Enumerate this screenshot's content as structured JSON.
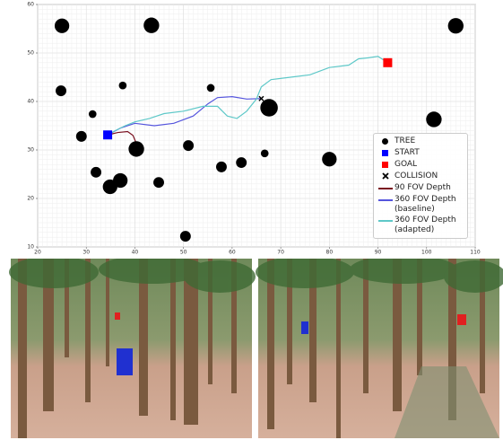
{
  "chart_data": {
    "type": "scatter",
    "xlim": [
      20,
      110
    ],
    "ylim": [
      10,
      60
    ],
    "xticks": [
      20,
      30,
      40,
      50,
      60,
      70,
      80,
      90,
      100,
      110
    ],
    "yticks": [
      10,
      20,
      30,
      40,
      50,
      60
    ],
    "grid": true,
    "legend": "lower right",
    "series": [
      {
        "name": "TREE",
        "color": "#000000",
        "marker": "circle",
        "x": [
          25,
          43.4,
          106,
          24.8,
          37.5,
          55.6,
          31.3,
          67.6,
          101.5,
          29,
          40.3,
          51,
          66.7,
          80,
          61.9,
          57.8,
          32,
          37,
          34.9,
          44.9,
          50.4
        ],
        "y": [
          55.6,
          55.7,
          55.6,
          42.2,
          43.3,
          42.8,
          37.4,
          38.7,
          36.3,
          32.8,
          30.2,
          30.9,
          29.3,
          28.1,
          27.4,
          26.5,
          25.4,
          23.7,
          22.4,
          23.3,
          12.2
        ],
        "sizes": [
          1.5,
          1.6,
          1.6,
          1.1,
          0.8,
          0.8,
          0.8,
          1.8,
          1.6,
          1.1,
          1.6,
          1.1,
          0.8,
          1.5,
          1.1,
          1.1,
          1.1,
          1.5,
          1.5,
          1.1,
          1.1
        ]
      },
      {
        "name": "START",
        "color": "#0000ff",
        "marker": "square",
        "x": [
          34.4
        ],
        "y": [
          33.1
        ]
      },
      {
        "name": "GOAL",
        "color": "#ff0000",
        "marker": "square",
        "x": [
          92
        ],
        "y": [
          48
        ]
      },
      {
        "name": "COLLISION",
        "color": "#000000",
        "marker": "x",
        "x": [
          66
        ],
        "y": [
          40.6
        ]
      },
      {
        "name": "90 FOV Depth",
        "color": "#7a1020",
        "marker": "line",
        "x": [
          34.4,
          36.5,
          38.5,
          39.6,
          40.2
        ],
        "y": [
          33.1,
          33.6,
          33.8,
          33,
          31.6
        ]
      },
      {
        "name": "360 FOV Depth\n(baseline)",
        "color": "#5555dd",
        "marker": "line",
        "x": [
          34.4,
          37,
          40,
          44,
          48,
          52,
          55,
          57,
          60,
          63,
          66
        ],
        "y": [
          33.1,
          34.5,
          35.5,
          35,
          35.5,
          37,
          39.5,
          40.8,
          41,
          40.5,
          40.6
        ]
      },
      {
        "name": "360 FOV Depth\n(adapted)",
        "color": "#5ec8c8",
        "marker": "line",
        "x": [
          34.4,
          36,
          38,
          40,
          43,
          46,
          50,
          54,
          57,
          59,
          61,
          63,
          65,
          66,
          68,
          72,
          76,
          80,
          84,
          86,
          88,
          90,
          92
        ],
        "y": [
          33.1,
          34,
          35,
          35.8,
          36.5,
          37.5,
          38,
          39,
          39,
          37,
          36.5,
          38,
          40.5,
          43,
          44.5,
          45,
          45.5,
          47,
          47.5,
          48.8,
          49,
          49.3,
          48
        ]
      }
    ]
  }
}
